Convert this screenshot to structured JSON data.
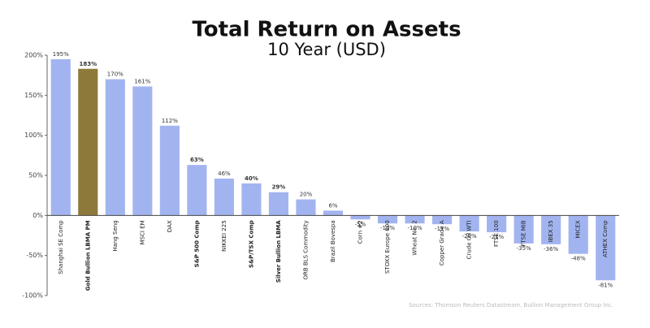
{
  "chart_data": {
    "type": "bar",
    "title": "Total Return on Assets",
    "subtitle": "10 Year (USD)",
    "source": "Sources: Thomson Reuters Datastream, Bullion Management Group Inc.",
    "categories": [
      "Shanghai SE Comp",
      "Gold Bullion LBMA PM",
      "Hang Seng",
      "MSCI EM",
      "DAX",
      "S&P 500 Comp",
      "NIKKEI 225",
      "S&P/TSX Comp",
      "Silver Bullion LBMA",
      "ORB BLS Commodity",
      "Brazil Bovespa",
      "Corn #2",
      "STOXX Europe 600",
      "Wheat No. 2",
      "Copper Grade A",
      "Crude Oil WTI",
      "FTSE 100",
      "FTSE MIB",
      "IBEX 35",
      "MICEX",
      "ATHEX Comp"
    ],
    "values": [
      195,
      183,
      170,
      161,
      112,
      63,
      46,
      40,
      29,
      20,
      6,
      -5,
      -10,
      -10,
      -11,
      -20,
      -21,
      -35,
      -36,
      -48,
      -81
    ],
    "value_labels": [
      "195%",
      "183%",
      "170%",
      "161%",
      "112%",
      "63%",
      "46%",
      "40%",
      "29%",
      "20%",
      "6%",
      "-5%",
      "-10%",
      "-10%",
      "-11%",
      "-20%",
      "-21%",
      "-35%",
      "-36%",
      "-48%",
      "-81%"
    ],
    "colors": [
      "#a2b4f0",
      "#8d7a3a",
      "#a2b4f0",
      "#a2b4f0",
      "#a2b4f0",
      "#a2b4f0",
      "#a2b4f0",
      "#a2b4f0",
      "#a2b4f0",
      "#a2b4f0",
      "#a2b4f0",
      "#a2b4f0",
      "#a2b4f0",
      "#a2b4f0",
      "#a2b4f0",
      "#a2b4f0",
      "#a2b4f0",
      "#a2b4f0",
      "#a2b4f0",
      "#a2b4f0",
      "#a2b4f0"
    ],
    "bold": [
      false,
      true,
      false,
      false,
      false,
      true,
      false,
      true,
      true,
      false,
      false,
      false,
      false,
      false,
      false,
      false,
      false,
      false,
      false,
      false,
      false
    ],
    "ylim": [
      -100,
      200
    ],
    "yticks": [
      {
        "value": -100,
        "label": "-100%"
      },
      {
        "value": -50,
        "label": "-50%"
      },
      {
        "value": 0,
        "label": "0%"
      },
      {
        "value": 50,
        "label": "50%"
      },
      {
        "value": 100,
        "label": "100%"
      },
      {
        "value": 150,
        "label": "150%"
      },
      {
        "value": 200,
        "label": "200%"
      }
    ],
    "grid": false
  }
}
